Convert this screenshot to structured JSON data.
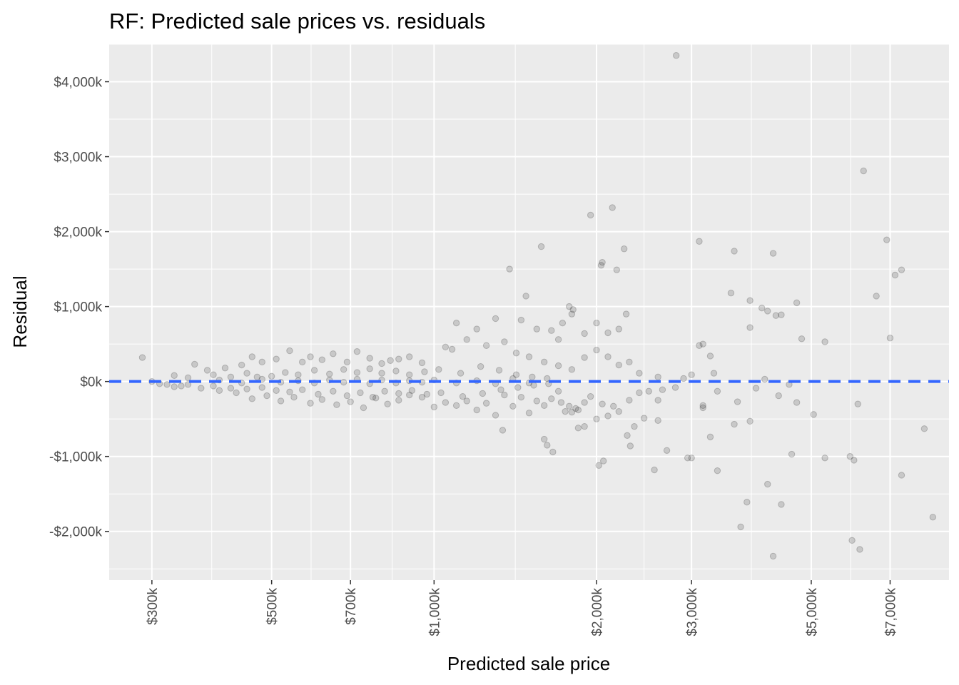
{
  "chart_data": {
    "type": "scatter",
    "title": "RF: Predicted sale prices vs. residuals",
    "xlabel": "Predicted sale price",
    "ylabel": "Residual",
    "x_scale": "log10",
    "xlim": [
      250000,
      9000000
    ],
    "ylim": [
      -2650000,
      4500000
    ],
    "x_tick_values": [
      300000,
      500000,
      700000,
      1000000,
      2000000,
      3000000,
      5000000,
      7000000
    ],
    "x_tick_labels": [
      "$300k",
      "$500k",
      "$700k",
      "$1,000k",
      "$2,000k",
      "$3,000k",
      "$5,000k",
      "$7,000k"
    ],
    "y_tick_values": [
      -2000000,
      -1000000,
      0,
      1000000,
      2000000,
      3000000,
      4000000
    ],
    "y_tick_labels": [
      "-$2,000k",
      "-$1,000k",
      "$0k",
      "$1,000k",
      "$2,000k",
      "$3,000k",
      "$4,000k"
    ],
    "grid": true,
    "reference_line": {
      "y": 0,
      "style": "dashed",
      "color": "#3366ff"
    },
    "colors": {
      "panel": "#ebebeb",
      "grid": "#ffffff",
      "point": "#000000"
    },
    "point_opacity": 0.15,
    "series": [
      {
        "values": [
          [
            288000,
            320000
          ],
          [
            300000,
            0
          ],
          [
            2810000,
            4350000
          ],
          [
            6250000,
            2810000
          ],
          [
            2140000,
            2320000
          ],
          [
            1950000,
            2220000
          ],
          [
            2250000,
            1770000
          ],
          [
            1580000,
            1800000
          ],
          [
            6900000,
            1890000
          ],
          [
            3100000,
            1870000
          ],
          [
            2050000,
            1590000
          ],
          [
            2040000,
            1550000
          ],
          [
            2180000,
            1490000
          ],
          [
            1380000,
            1500000
          ],
          [
            3600000,
            1740000
          ],
          [
            4250000,
            1710000
          ],
          [
            7350000,
            1490000
          ],
          [
            7150000,
            1420000
          ],
          [
            3550000,
            1180000
          ],
          [
            6600000,
            1140000
          ],
          [
            1480000,
            1140000
          ],
          [
            4700000,
            1050000
          ],
          [
            3850000,
            1080000
          ],
          [
            4050000,
            980000
          ],
          [
            4150000,
            940000
          ],
          [
            4300000,
            880000
          ],
          [
            4400000,
            890000
          ],
          [
            1810000,
            960000
          ],
          [
            1800000,
            900000
          ],
          [
            1780000,
            1000000
          ],
          [
            2270000,
            900000
          ],
          [
            1730000,
            780000
          ],
          [
            7000000,
            580000
          ],
          [
            4800000,
            570000
          ],
          [
            5300000,
            530000
          ],
          [
            3100000,
            480000
          ],
          [
            3150000,
            500000
          ],
          [
            3250000,
            340000
          ],
          [
            3850000,
            720000
          ],
          [
            2200000,
            700000
          ],
          [
            2100000,
            650000
          ],
          [
            2000000,
            780000
          ],
          [
            1900000,
            640000
          ],
          [
            1700000,
            560000
          ],
          [
            1650000,
            680000
          ],
          [
            1550000,
            700000
          ],
          [
            1450000,
            820000
          ],
          [
            1300000,
            840000
          ],
          [
            1200000,
            700000
          ],
          [
            1100000,
            780000
          ],
          [
            3000000,
            -1020000
          ],
          [
            2950000,
            -1020000
          ],
          [
            2700000,
            -920000
          ],
          [
            2560000,
            -1180000
          ],
          [
            2020000,
            -1120000
          ],
          [
            2060000,
            -1060000
          ],
          [
            1660000,
            -940000
          ],
          [
            1620000,
            -850000
          ],
          [
            1600000,
            -770000
          ],
          [
            1340000,
            -650000
          ],
          [
            1850000,
            -620000
          ],
          [
            1900000,
            -600000
          ],
          [
            2350000,
            -600000
          ],
          [
            2280000,
            -720000
          ],
          [
            2310000,
            -860000
          ],
          [
            2450000,
            -490000
          ],
          [
            2600000,
            -520000
          ],
          [
            3150000,
            -320000
          ],
          [
            3350000,
            -1190000
          ],
          [
            3250000,
            -740000
          ],
          [
            3600000,
            -570000
          ],
          [
            3850000,
            -530000
          ],
          [
            3800000,
            -1610000
          ],
          [
            3700000,
            -1940000
          ],
          [
            4400000,
            -1640000
          ],
          [
            4150000,
            -1370000
          ],
          [
            4250000,
            -2330000
          ],
          [
            4600000,
            -970000
          ],
          [
            5050000,
            -440000
          ],
          [
            5300000,
            -1020000
          ],
          [
            5900000,
            -1000000
          ],
          [
            6000000,
            -1050000
          ],
          [
            5950000,
            -2120000
          ],
          [
            6150000,
            -2240000
          ],
          [
            6100000,
            -300000
          ],
          [
            7350000,
            -1250000
          ],
          [
            8100000,
            -630000
          ],
          [
            8400000,
            -1810000
          ],
          [
            4700000,
            -280000
          ],
          [
            4550000,
            -40000
          ],
          [
            4350000,
            -190000
          ],
          [
            4100000,
            30000
          ],
          [
            3950000,
            -90000
          ],
          [
            3650000,
            -270000
          ],
          [
            3350000,
            -130000
          ],
          [
            3150000,
            -350000
          ],
          [
            2800000,
            -80000
          ],
          [
            2650000,
            -110000
          ],
          [
            2600000,
            -250000
          ],
          [
            2500000,
            -130000
          ],
          [
            2400000,
            -150000
          ],
          [
            2300000,
            -250000
          ],
          [
            2200000,
            -400000
          ],
          [
            2150000,
            -330000
          ],
          [
            2100000,
            -460000
          ],
          [
            2050000,
            -300000
          ],
          [
            2000000,
            -500000
          ],
          [
            1950000,
            -200000
          ],
          [
            1900000,
            -280000
          ],
          [
            1850000,
            -380000
          ],
          [
            1830000,
            -360000
          ],
          [
            1800000,
            -410000
          ],
          [
            1780000,
            -330000
          ],
          [
            1750000,
            -400000
          ],
          [
            1720000,
            -280000
          ],
          [
            1700000,
            -130000
          ],
          [
            1650000,
            -230000
          ],
          [
            1600000,
            -320000
          ],
          [
            1550000,
            -260000
          ],
          [
            1500000,
            -420000
          ],
          [
            1450000,
            -210000
          ],
          [
            1400000,
            -330000
          ],
          [
            1350000,
            -180000
          ],
          [
            1300000,
            -450000
          ],
          [
            1250000,
            -290000
          ],
          [
            1200000,
            -380000
          ],
          [
            1150000,
            -260000
          ],
          [
            1100000,
            -320000
          ],
          [
            1050000,
            -280000
          ],
          [
            1000000,
            -340000
          ],
          [
            1080000,
            430000
          ],
          [
            1050000,
            460000
          ],
          [
            1150000,
            560000
          ],
          [
            1250000,
            480000
          ],
          [
            1350000,
            530000
          ],
          [
            1420000,
            380000
          ],
          [
            1500000,
            330000
          ],
          [
            1600000,
            260000
          ],
          [
            1700000,
            210000
          ],
          [
            1800000,
            160000
          ],
          [
            1900000,
            320000
          ],
          [
            2000000,
            420000
          ],
          [
            2100000,
            330000
          ],
          [
            2200000,
            220000
          ],
          [
            2300000,
            260000
          ],
          [
            2400000,
            110000
          ],
          [
            2600000,
            60000
          ],
          [
            2900000,
            40000
          ],
          [
            3000000,
            90000
          ],
          [
            3300000,
            110000
          ],
          [
            950000,
            250000
          ],
          [
            900000,
            330000
          ],
          [
            860000,
            300000
          ],
          [
            830000,
            280000
          ],
          [
            800000,
            240000
          ],
          [
            760000,
            310000
          ],
          [
            720000,
            400000
          ],
          [
            690000,
            260000
          ],
          [
            650000,
            370000
          ],
          [
            620000,
            290000
          ],
          [
            590000,
            330000
          ],
          [
            570000,
            260000
          ],
          [
            540000,
            410000
          ],
          [
            510000,
            300000
          ],
          [
            480000,
            260000
          ],
          [
            460000,
            330000
          ],
          [
            440000,
            220000
          ],
          [
            410000,
            180000
          ],
          [
            380000,
            150000
          ],
          [
            360000,
            230000
          ],
          [
            950000,
            -210000
          ],
          [
            900000,
            -180000
          ],
          [
            860000,
            -250000
          ],
          [
            820000,
            -300000
          ],
          [
            780000,
            -220000
          ],
          [
            740000,
            -350000
          ],
          [
            700000,
            -270000
          ],
          [
            660000,
            -310000
          ],
          [
            620000,
            -240000
          ],
          [
            590000,
            -290000
          ],
          [
            550000,
            -210000
          ],
          [
            520000,
            -260000
          ],
          [
            490000,
            -190000
          ],
          [
            460000,
            -230000
          ],
          [
            430000,
            -150000
          ],
          [
            400000,
            -120000
          ],
          [
            370000,
            -90000
          ],
          [
            340000,
            -60000
          ],
          [
            320000,
            -40000
          ],
          [
            310000,
            -30000
          ],
          [
            330000,
            80000
          ],
          [
            350000,
            50000
          ],
          [
            390000,
            90000
          ],
          [
            420000,
            60000
          ],
          [
            450000,
            110000
          ],
          [
            470000,
            60000
          ],
          [
            500000,
            70000
          ],
          [
            530000,
            120000
          ],
          [
            560000,
            90000
          ],
          [
            600000,
            150000
          ],
          [
            640000,
            100000
          ],
          [
            680000,
            160000
          ],
          [
            720000,
            120000
          ],
          [
            760000,
            170000
          ],
          [
            800000,
            110000
          ],
          [
            850000,
            140000
          ],
          [
            900000,
            90000
          ],
          [
            960000,
            130000
          ],
          [
            1020000,
            160000
          ],
          [
            1120000,
            110000
          ],
          [
            1220000,
            200000
          ],
          [
            1320000,
            150000
          ],
          [
            1420000,
            90000
          ],
          [
            1520000,
            60000
          ],
          [
            1620000,
            40000
          ],
          [
            330000,
            -70000
          ],
          [
            350000,
            -40000
          ],
          [
            390000,
            -60000
          ],
          [
            420000,
            -90000
          ],
          [
            450000,
            -100000
          ],
          [
            480000,
            -80000
          ],
          [
            510000,
            -120000
          ],
          [
            540000,
            -140000
          ],
          [
            570000,
            -110000
          ],
          [
            610000,
            -170000
          ],
          [
            650000,
            -130000
          ],
          [
            690000,
            -190000
          ],
          [
            730000,
            -150000
          ],
          [
            770000,
            -210000
          ],
          [
            810000,
            -130000
          ],
          [
            860000,
            -160000
          ],
          [
            910000,
            -120000
          ],
          [
            970000,
            -170000
          ],
          [
            1030000,
            -150000
          ],
          [
            1130000,
            -200000
          ],
          [
            1230000,
            -160000
          ],
          [
            1330000,
            -110000
          ],
          [
            1430000,
            -80000
          ],
          [
            1530000,
            -50000
          ],
          [
            1630000,
            -30000
          ],
          [
            400000,
            20000
          ],
          [
            440000,
            -20000
          ],
          [
            480000,
            30000
          ],
          [
            520000,
            -10000
          ],
          [
            560000,
            10000
          ],
          [
            600000,
            -20000
          ],
          [
            640000,
            20000
          ],
          [
            680000,
            -10000
          ],
          [
            720000,
            30000
          ],
          [
            760000,
            -30000
          ],
          [
            800000,
            20000
          ],
          [
            850000,
            -20000
          ],
          [
            900000,
            10000
          ],
          [
            950000,
            -10000
          ],
          [
            1000000,
            20000
          ],
          [
            1100000,
            -20000
          ],
          [
            1200000,
            10000
          ],
          [
            1300000,
            -30000
          ],
          [
            1400000,
            40000
          ],
          [
            1500000,
            -20000
          ]
        ]
      }
    ]
  }
}
